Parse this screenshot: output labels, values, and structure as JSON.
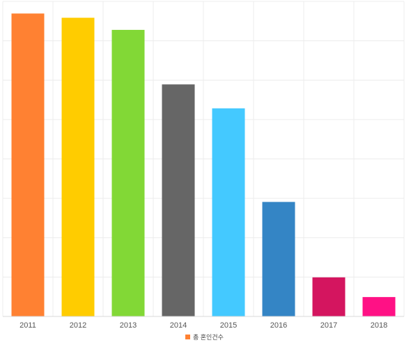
{
  "chart_data": {
    "type": "bar",
    "categories": [
      "2011",
      "2012",
      "2013",
      "2014",
      "2015",
      "2016",
      "2017",
      "2018"
    ],
    "values": [
      100,
      98.6,
      94.6,
      76.6,
      68.7,
      37.8,
      12.9,
      6.4
    ],
    "colors": [
      "#ff8132",
      "#ffcc00",
      "#82d836",
      "#666666",
      "#44c9ff",
      "#3485c5",
      "#d4155f",
      "#ff1185"
    ],
    "ylim": [
      0,
      104
    ],
    "grid": true,
    "legend": {
      "position": "bottom-center",
      "entries": [
        {
          "label": "총 혼인건수",
          "color": "#ff8132"
        }
      ]
    }
  }
}
